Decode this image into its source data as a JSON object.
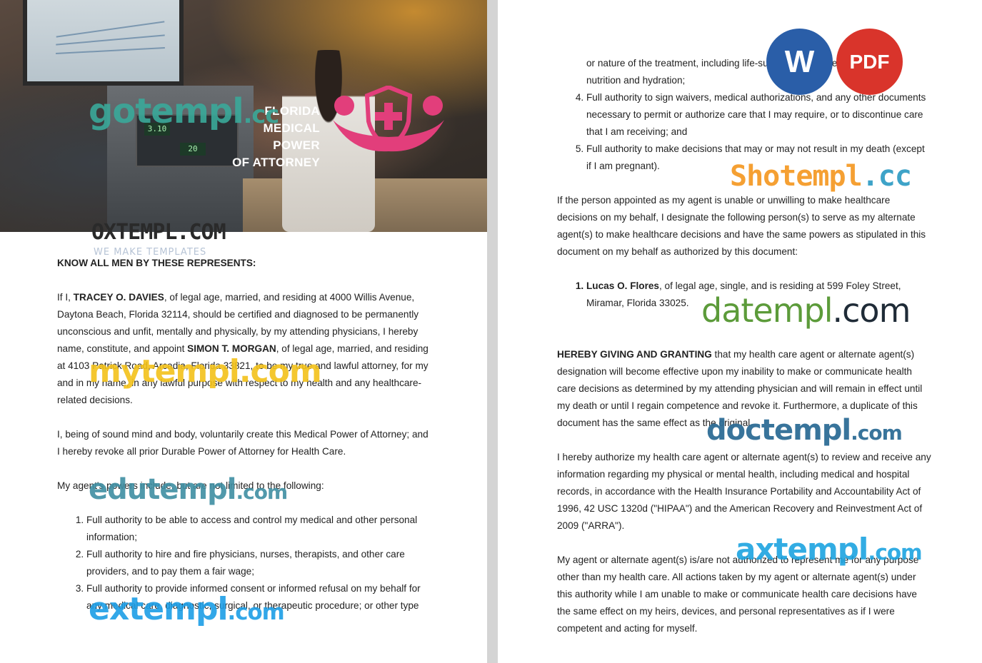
{
  "hero": {
    "title_line1": "FLORIDA MEDICAL POWER",
    "title_line2": "OF ATTORNEY",
    "lcd1": "3.10",
    "lcd2": "20"
  },
  "left": {
    "heading": "KNOW ALL MEN BY THESE REPRESENTS:",
    "p1_a": "If I, ",
    "p1_principal": "TRACEY O. DAVIES",
    "p1_b": ", of legal age, married, and residing at 4000 Willis Avenue, Daytona Beach, Florida 32114, should be certified and diagnosed to be permanently unconscious and unfit, mentally and physically, by my attending physicians, I hereby name, constitute, and appoint ",
    "p1_agent": "SIMON T. MORGAN",
    "p1_c": ", of legal age, married, and residing at 4103 Patrick Road, Arcadia, Florida 33821, to be my true and lawful attorney, for my and in my name, in any lawful purpose with respect to my health and any healthcare-related decisions.",
    "p2": "I, being of sound mind and body, voluntarily create this Medical Power of Attorney; and I hereby revoke all prior Durable Power of Attorney for Health Care.",
    "p3": "My agent's powers include, but are not limited to the following:",
    "list": [
      "Full authority to be able to access and control my medical and other personal information;",
      "Full authority to hire and fire physicians, nurses, therapists, and other care providers, and to pay them a fair wage;",
      "Full authority to provide informed consent or informed refusal on my behalf for any medical care, diagnostic, surgical, or therapeutic procedure; or other type"
    ]
  },
  "right": {
    "cont": "or nature of the treatment, including life-sustaining treatment and artificial nutrition and hydration;",
    "list": [
      "Full authority to sign waivers, medical authorizations, and any other documents necessary to permit or authorize care that I may require, or to discontinue care that I am receiving; and",
      "Full authority to make decisions that may or may not result in my death (except if I am pregnant)."
    ],
    "p1": "If the person appointed as my agent is unable or unwilling to make healthcare decisions on my behalf, I designate the following person(s) to serve as my alternate agent(s) to make healthcare decisions and have the same powers as stipulated in this document on my behalf as authorized by this document:",
    "alt_name": "Lucas O. Flores",
    "alt_rest": ", of legal age, single, and is residing at 599 Foley Street, Miramar, Florida 33025.",
    "p2_bold": "HEREBY GIVING AND GRANTING",
    "p2_rest": " that my health care agent or alternate agent(s) designation will become effective upon my inability to make or communicate health care decisions as determined by my attending physician and will remain in effect until my death or until I regain competence and revoke it. Furthermore, a duplicate of this document has the same effect as the original.",
    "p3": "I hereby authorize my health care agent or alternate agent(s) to review and receive any information regarding my physical or mental health, including medical and hospital records, in accordance with the Health Insurance Portability and Accountability Act of 1996, 42 USC 1320d (\"HIPAA\") and the American Recovery and Reinvestment Act of 2009 (\"ARRA\").",
    "p4": "My agent or alternate agent(s) is/are not authorized to represent me for any purpose other than my health care. All actions taken by my agent or alternate agent(s) under this authority while I am unable to make or communicate health care decisions have the same effect on my heirs, devices, and personal representatives as if I were competent and acting for myself."
  },
  "badges": {
    "word": "W",
    "pdf": "PDF"
  },
  "watermarks": {
    "gotempl": {
      "a": "gotempl",
      "b": ".cc"
    },
    "oxtempl": {
      "a": "OXTEMPL.COM",
      "sub": "WE MAKE TEMPLATES"
    },
    "mytempl": {
      "a": "mytempl",
      "b": ".com"
    },
    "edutempl": {
      "a": "edutempl",
      "b": ".com"
    },
    "extempl": {
      "a": "extempl",
      "b": ".com"
    },
    "shotempl": {
      "a": "Shotempl",
      "b": ".cc"
    },
    "datempl": {
      "a": "datempl",
      "b": ".com"
    },
    "doctempl": {
      "a": "doctempl",
      "b": ".com"
    },
    "axtempl": {
      "a": "axtempl",
      "b": ".com"
    }
  },
  "colors": {
    "word_blue": "#2a5ea8",
    "pdf_red": "#d9342b",
    "logo_pink": "#e23e7b"
  }
}
